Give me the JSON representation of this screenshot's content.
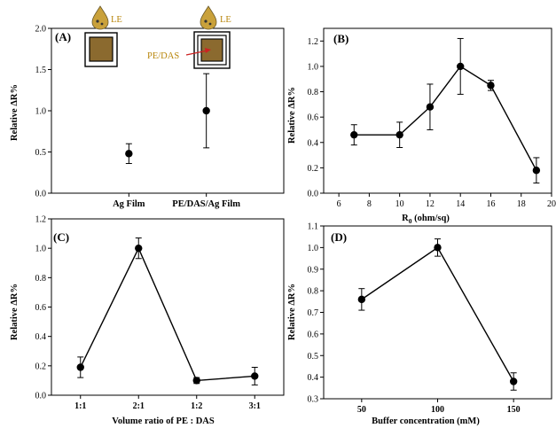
{
  "colors": {
    "line": "#000000",
    "marker": "#000000",
    "film": "#8b6a2f",
    "arrow": "#cc2222",
    "inset_text": "#b8860b"
  },
  "chart_data": [
    {
      "id": "A",
      "panel_label": "(A)",
      "type": "scatter",
      "connected": false,
      "categories": [
        "Ag Film",
        "PE/DAS/Ag Film"
      ],
      "values": [
        0.48,
        1.0
      ],
      "errors": [
        0.12,
        0.45
      ],
      "ylabel": "Relative ΔR%",
      "xlabel": "",
      "ylim": [
        0,
        2.0
      ],
      "yticks": [
        0.0,
        0.5,
        1.0,
        1.5,
        2.0
      ],
      "ytick_labels": [
        "0.0",
        "0.5",
        "1.0",
        "1.5",
        "2.0"
      ],
      "insets": {
        "drop_label_1": "LE",
        "drop_label_2": "LE",
        "layer_label": "PE/DAS"
      }
    },
    {
      "id": "B",
      "panel_label": "(B)",
      "type": "line",
      "x": [
        7,
        10,
        12,
        14,
        16,
        19
      ],
      "values": [
        0.46,
        0.46,
        0.68,
        1.0,
        0.85,
        0.18
      ],
      "errors": [
        0.08,
        0.1,
        0.18,
        0.22,
        0.04,
        0.1
      ],
      "xlim": [
        5,
        20
      ],
      "xticks": [
        6,
        8,
        10,
        12,
        14,
        16,
        18,
        20
      ],
      "xtick_labels": [
        "6",
        "8",
        "10",
        "12",
        "14",
        "16",
        "18",
        "20"
      ],
      "ylim": [
        0,
        1.3
      ],
      "yticks": [
        0.0,
        0.2,
        0.4,
        0.6,
        0.8,
        1.0,
        1.2
      ],
      "ytick_labels": [
        "0.0",
        "0.2",
        "0.4",
        "0.6",
        "0.8",
        "1.0",
        "1.2"
      ],
      "ylabel": "Relative ΔR%",
      "xlabel_main": "R",
      "xlabel_sub": "0",
      "xlabel_rest": " (ohm/sq)"
    },
    {
      "id": "C",
      "panel_label": "(C)",
      "type": "line",
      "categories": [
        "1:1",
        "2:1",
        "1:2",
        "3:1"
      ],
      "values": [
        0.19,
        1.0,
        0.1,
        0.13
      ],
      "errors": [
        0.07,
        0.07,
        0.02,
        0.06
      ],
      "ylim": [
        0,
        1.2
      ],
      "yticks": [
        0.0,
        0.2,
        0.4,
        0.6,
        0.8,
        1.0,
        1.2
      ],
      "ytick_labels": [
        "0.0",
        "0.2",
        "0.4",
        "0.6",
        "0.8",
        "1.0",
        "1.2"
      ],
      "ylabel": "Relative ΔR%",
      "xlabel": "Volume ratio of PE : DAS"
    },
    {
      "id": "D",
      "panel_label": "(D)",
      "type": "line",
      "categories": [
        "50",
        "100",
        "150"
      ],
      "values": [
        0.76,
        1.0,
        0.38
      ],
      "errors": [
        0.05,
        0.04,
        0.04
      ],
      "ylim": [
        0.3,
        1.1
      ],
      "yticks": [
        0.3,
        0.4,
        0.5,
        0.6,
        0.7,
        0.8,
        0.9,
        1.0,
        1.1
      ],
      "ytick_labels": [
        "0.3",
        "0.4",
        "0.5",
        "0.6",
        "0.7",
        "0.8",
        "0.9",
        "1.0",
        "1.1"
      ],
      "ylabel": "Relative ΔR%",
      "xlabel": "Buffer concentration (mM)"
    }
  ]
}
